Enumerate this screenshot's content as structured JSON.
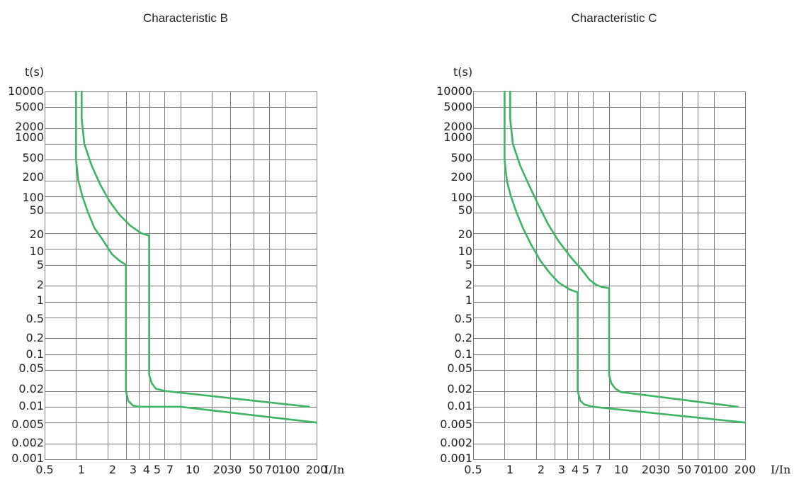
{
  "chart_data": [
    {
      "type": "line",
      "title": "Characteristic B",
      "xlabel": "I/In",
      "ylabel": "t(s)",
      "xscale": "log",
      "yscale": "log",
      "xlim": [
        0.5,
        200
      ],
      "ylim": [
        0.001,
        10000
      ],
      "grid": true,
      "x_ticks": [
        0.5,
        1,
        2,
        3,
        4,
        5,
        7,
        10,
        20,
        30,
        50,
        70,
        100,
        200
      ],
      "x_tick_labels": [
        "0.5",
        "1",
        "2",
        "3",
        "4",
        "5",
        "7",
        "10",
        "20",
        "30",
        "50",
        "70",
        "100",
        "200"
      ],
      "y_ticks": [
        10000,
        5000,
        2000,
        1000,
        500,
        200,
        100,
        50,
        20,
        10,
        5,
        2,
        1,
        0.5,
        0.2,
        0.1,
        0.05,
        0.02,
        0.01,
        0.005,
        0.002,
        0.001
      ],
      "y_tick_labels": [
        "10000",
        "5000",
        "2000",
        "1000",
        "500",
        "200",
        "100",
        "50",
        "20",
        "10",
        "5",
        "2",
        "1",
        "0.5",
        "0.2",
        "0.1",
        "0.05",
        "0.02",
        "0.01",
        "0.005",
        "0.002",
        "0.001"
      ],
      "series": [
        {
          "points": [
            [
              1.0,
              10000
            ],
            [
              1.0,
              1000
            ],
            [
              1.0,
              500
            ],
            [
              1.05,
              200
            ],
            [
              1.15,
              100
            ],
            [
              1.3,
              50
            ],
            [
              1.5,
              25
            ],
            [
              1.8,
              15
            ],
            [
              2.2,
              8
            ],
            [
              2.6,
              6
            ],
            [
              3.0,
              5
            ],
            [
              3.0,
              0.02
            ],
            [
              3.15,
              0.013
            ],
            [
              3.5,
              0.0105
            ],
            [
              4.0,
              0.01
            ],
            [
              10,
              0.01
            ],
            [
              200,
              0.005
            ]
          ]
        },
        {
          "points": [
            [
              1.13,
              10000
            ],
            [
              1.13,
              3000
            ],
            [
              1.2,
              1000
            ],
            [
              1.4,
              400
            ],
            [
              1.7,
              170
            ],
            [
              2.1,
              80
            ],
            [
              2.6,
              45
            ],
            [
              3.3,
              28
            ],
            [
              4.2,
              20
            ],
            [
              5.0,
              18
            ],
            [
              5.0,
              0.04
            ],
            [
              5.3,
              0.028
            ],
            [
              5.8,
              0.022
            ],
            [
              7.0,
              0.02
            ],
            [
              170,
              0.01
            ]
          ]
        }
      ]
    },
    {
      "type": "line",
      "title": "Characteristic C",
      "xlabel": "I/In",
      "ylabel": "t(s)",
      "xscale": "log",
      "yscale": "log",
      "xlim": [
        0.5,
        200
      ],
      "ylim": [
        0.001,
        10000
      ],
      "grid": true,
      "x_ticks": [
        0.5,
        1,
        2,
        3,
        4,
        5,
        7,
        10,
        20,
        30,
        50,
        70,
        100,
        200
      ],
      "x_tick_labels": [
        "0.5",
        "1",
        "2",
        "3",
        "4",
        "5",
        "7",
        "10",
        "20",
        "30",
        "50",
        "70",
        "100",
        "200"
      ],
      "y_ticks": [
        10000,
        5000,
        2000,
        1000,
        500,
        200,
        100,
        50,
        20,
        10,
        5,
        2,
        1,
        0.5,
        0.2,
        0.1,
        0.05,
        0.02,
        0.01,
        0.005,
        0.002,
        0.001
      ],
      "y_tick_labels": [
        "10000",
        "5000",
        "2000",
        "1000",
        "500",
        "200",
        "100",
        "50",
        "20",
        "10",
        "5",
        "2",
        "1",
        "0.5",
        "0.2",
        "0.1",
        "0.05",
        "0.02",
        "0.01",
        "0.005",
        "0.002",
        "0.001"
      ],
      "series": [
        {
          "points": [
            [
              1.0,
              10000
            ],
            [
              1.0,
              1000
            ],
            [
              1.0,
              500
            ],
            [
              1.05,
              200
            ],
            [
              1.15,
              100
            ],
            [
              1.3,
              50
            ],
            [
              1.5,
              25
            ],
            [
              1.8,
              12
            ],
            [
              2.2,
              6
            ],
            [
              2.7,
              3.5
            ],
            [
              3.3,
              2.3
            ],
            [
              4.2,
              1.7
            ],
            [
              5.0,
              1.5
            ],
            [
              5.0,
              0.02
            ],
            [
              5.3,
              0.013
            ],
            [
              5.8,
              0.011
            ],
            [
              7.0,
              0.01
            ],
            [
              200,
              0.005
            ]
          ]
        },
        {
          "points": [
            [
              1.13,
              10000
            ],
            [
              1.13,
              3000
            ],
            [
              1.2,
              1000
            ],
            [
              1.4,
              400
            ],
            [
              1.7,
              170
            ],
            [
              2.1,
              70
            ],
            [
              2.6,
              30
            ],
            [
              3.3,
              14
            ],
            [
              4.3,
              7
            ],
            [
              5.5,
              4
            ],
            [
              6.5,
              2.6
            ],
            [
              7.5,
              2.1
            ],
            [
              8.5,
              1.9
            ],
            [
              10,
              1.8
            ],
            [
              10,
              0.04
            ],
            [
              10.5,
              0.028
            ],
            [
              11.5,
              0.022
            ],
            [
              13,
              0.019
            ],
            [
              170,
              0.01
            ]
          ]
        }
      ]
    }
  ]
}
